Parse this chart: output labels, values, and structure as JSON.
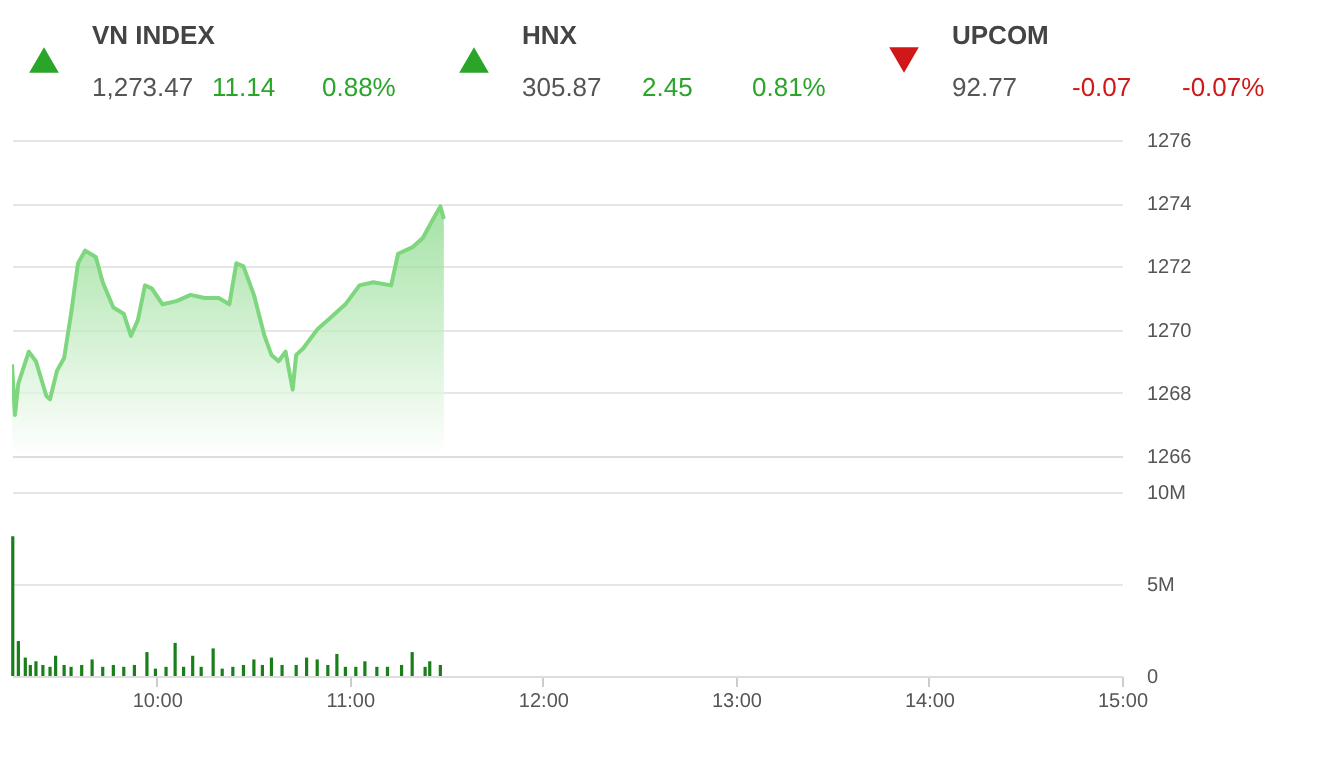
{
  "chart_data": [
    {
      "type": "other",
      "categories": [
        "VN INDEX",
        "HNX",
        "UPCOM"
      ],
      "values": [
        11.14,
        2.45,
        -0.07
      ],
      "value_labels": [
        "11.14",
        "2.45",
        "-0.07"
      ],
      "annotations": [
        "1,273.47",
        "0.88%",
        "305.87",
        "0.81%",
        "92.77",
        "-0.07%"
      ],
      "colors": [
        "#2aa52a",
        "#2aa52a",
        "#d01818"
      ]
    },
    {
      "type": "area",
      "color": "#7ed67e",
      "x": [
        9.25,
        9.265,
        9.283,
        9.337,
        9.374,
        9.428,
        9.447,
        9.483,
        9.52,
        9.556,
        9.592,
        9.629,
        9.684,
        9.72,
        9.775,
        9.829,
        9.866,
        9.902,
        9.939,
        9.975,
        10.03,
        10.102,
        10.175,
        10.248,
        10.321,
        10.376,
        10.412,
        10.449,
        10.503,
        10.558,
        10.594,
        10.631,
        10.667,
        10.704,
        10.722,
        10.758,
        10.831,
        10.904,
        10.977,
        11.05,
        11.122,
        11.214,
        11.25,
        11.323,
        11.378,
        11.432,
        11.469,
        11.487
      ],
      "values": [
        1268.9,
        1267.3,
        1268.3,
        1269.3,
        1269.0,
        1267.9,
        1267.8,
        1268.7,
        1269.1,
        1270.5,
        1272.1,
        1272.5,
        1272.3,
        1271.5,
        1270.7,
        1270.5,
        1269.8,
        1270.3,
        1271.4,
        1271.3,
        1270.8,
        1270.9,
        1271.1,
        1271.0,
        1271.0,
        1270.8,
        1272.1,
        1272.0,
        1271.1,
        1269.8,
        1269.2,
        1269.0,
        1269.3,
        1268.1,
        1269.2,
        1269.4,
        1270.0,
        1270.4,
        1270.8,
        1271.4,
        1271.5,
        1271.4,
        1272.4,
        1272.6,
        1272.9,
        1273.5,
        1273.9,
        1273.5
      ],
      "xlim": [
        9.25,
        15
      ],
      "ylim": [
        1266,
        1276
      ],
      "yticks": [
        1266,
        1268,
        1270,
        1272,
        1274,
        1276
      ],
      "grid": "y",
      "tick_labels": "y"
    },
    {
      "type": "bar",
      "color": "#1a7f1a",
      "x": [
        9.254,
        9.283,
        9.319,
        9.345,
        9.374,
        9.41,
        9.447,
        9.476,
        9.52,
        9.556,
        9.611,
        9.665,
        9.72,
        9.775,
        9.829,
        9.884,
        9.949,
        9.993,
        10.048,
        10.095,
        10.139,
        10.186,
        10.23,
        10.292,
        10.339,
        10.394,
        10.449,
        10.503,
        10.547,
        10.594,
        10.649,
        10.722,
        10.776,
        10.831,
        10.886,
        10.933,
        10.977,
        11.031,
        11.078,
        11.14,
        11.195,
        11.268,
        11.323,
        11.39,
        11.414,
        11.469
      ],
      "values": [
        7.6,
        1.9,
        1.0,
        0.6,
        0.8,
        0.6,
        0.5,
        1.1,
        0.6,
        0.5,
        0.6,
        0.9,
        0.5,
        0.6,
        0.5,
        0.6,
        1.3,
        0.4,
        0.5,
        1.8,
        0.5,
        1.1,
        0.5,
        1.5,
        0.4,
        0.5,
        0.6,
        0.9,
        0.6,
        1.0,
        0.6,
        0.6,
        1.0,
        0.9,
        0.6,
        1.2,
        0.5,
        0.5,
        0.8,
        0.5,
        0.5,
        0.6,
        1.3,
        0.5,
        0.8,
        0.6
      ],
      "xlim": [
        9.25,
        15
      ],
      "xticks": [
        {
          "value": 10,
          "label": "10:00"
        },
        {
          "value": 11,
          "label": "11:00"
        },
        {
          "value": 12,
          "label": "12:00"
        },
        {
          "value": 13,
          "label": "13:00"
        },
        {
          "value": 14,
          "label": "14:00"
        },
        {
          "value": 15,
          "label": "15:00"
        }
      ],
      "ylim": [
        0,
        10
      ],
      "yticks": [
        0,
        {
          "value": 5,
          "label": "5M"
        },
        {
          "value": 10,
          "label": "10M"
        }
      ],
      "grid": "y"
    }
  ]
}
